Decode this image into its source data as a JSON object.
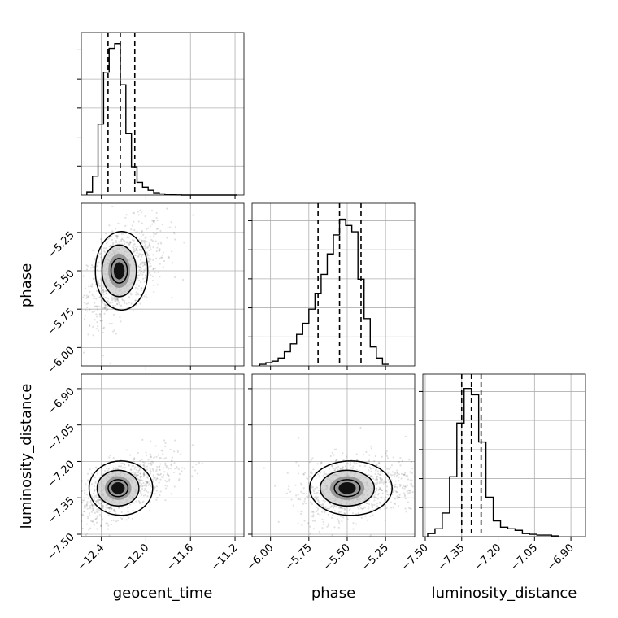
{
  "chart_data": {
    "type": "corner",
    "parameters": [
      "geocent_time",
      "phase",
      "luminosity_distance"
    ],
    "labels": {
      "x0": "geocent_time",
      "x1": "phase",
      "x2": "luminosity_distance",
      "y1": "phase",
      "y2": "luminosity_distance"
    },
    "ticks": {
      "geocent_time": [
        "−12.4",
        "−12.0",
        "−11.6",
        "−11.2"
      ],
      "phase": [
        "−6.00",
        "−5.75",
        "−5.50",
        "−5.25"
      ],
      "luminosity_distance": [
        "−7.50",
        "−7.35",
        "−7.20",
        "−7.05",
        "−6.90"
      ]
    },
    "tick_values": {
      "geocent_time": [
        -12.4,
        -12.0,
        -11.6,
        -11.2
      ],
      "phase": [
        -6.0,
        -5.75,
        -5.5,
        -5.25
      ],
      "luminosity_distance": [
        -7.5,
        -7.35,
        -7.2,
        -7.05,
        -6.9
      ]
    },
    "ranges": {
      "geocent_time": [
        -12.58,
        -11.12
      ],
      "phase": [
        -6.12,
        -5.06
      ],
      "luminosity_distance": [
        -7.51,
        -6.84
      ]
    },
    "quantiles": {
      "geocent_time": [
        -12.34,
        -12.23,
        -12.1
      ],
      "phase": [
        -5.69,
        -5.55,
        -5.41
      ],
      "luminosity_distance": [
        -7.35,
        -7.31,
        -7.27
      ]
    },
    "histograms": {
      "geocent_time": {
        "edges": [
          -12.53,
          -12.48,
          -12.43,
          -12.38,
          -12.33,
          -12.28,
          -12.23,
          -12.18,
          -12.13,
          -12.08,
          -12.03,
          -11.98,
          -11.93,
          -11.88,
          -11.83,
          -11.78,
          -11.73,
          -11.68,
          -11.63,
          -11.58,
          -11.53,
          -11.48,
          -11.43,
          -11.38,
          -11.33,
          -11.28,
          -11.23,
          -11.18
        ],
        "counts": [
          0.02,
          0.12,
          0.45,
          0.78,
          0.93,
          0.96,
          0.7,
          0.39,
          0.18,
          0.08,
          0.05,
          0.03,
          0.015,
          0.008,
          0.004,
          0.002,
          0.001,
          0.0,
          0.0,
          0.0,
          0.0,
          0.0,
          0.0,
          0.0,
          0.0,
          0.0,
          0.0
        ]
      },
      "phase": {
        "edges": [
          -6.07,
          -6.03,
          -5.99,
          -5.95,
          -5.91,
          -5.87,
          -5.83,
          -5.79,
          -5.75,
          -5.71,
          -5.67,
          -5.63,
          -5.59,
          -5.55,
          -5.51,
          -5.47,
          -5.43,
          -5.39,
          -5.35,
          -5.31,
          -5.27,
          -5.23
        ],
        "counts": [
          0.01,
          0.02,
          0.03,
          0.05,
          0.09,
          0.14,
          0.2,
          0.27,
          0.36,
          0.46,
          0.58,
          0.71,
          0.83,
          0.93,
          0.89,
          0.85,
          0.55,
          0.3,
          0.12,
          0.05,
          0.01
        ]
      },
      "luminosity_distance": {
        "edges": [
          -7.49,
          -7.46,
          -7.43,
          -7.4,
          -7.37,
          -7.34,
          -7.31,
          -7.28,
          -7.25,
          -7.22,
          -7.19,
          -7.16,
          -7.13,
          -7.1,
          -7.07,
          -7.04,
          -7.01,
          -6.98,
          -6.95
        ],
        "counts": [
          0.02,
          0.05,
          0.15,
          0.38,
          0.72,
          0.94,
          0.9,
          0.6,
          0.25,
          0.1,
          0.06,
          0.05,
          0.04,
          0.02,
          0.015,
          0.01,
          0.01,
          0.005
        ]
      }
    },
    "scatter": {
      "geocent_time_vs_phase": {
        "center": [
          -12.24,
          -5.5
        ],
        "sd": [
          0.14,
          0.16
        ],
        "corr": 0.5,
        "n": 900
      },
      "geocent_time_vs_luminosity_distance": {
        "center": [
          -12.25,
          -7.31
        ],
        "sd": [
          0.17,
          0.07
        ],
        "corr": 0.6,
        "n": 900
      },
      "phase_vs_luminosity_distance": {
        "center": [
          -5.5,
          -7.31
        ],
        "sd": [
          0.16,
          0.07
        ],
        "corr": 0.25,
        "n": 900
      }
    },
    "grid": true
  }
}
